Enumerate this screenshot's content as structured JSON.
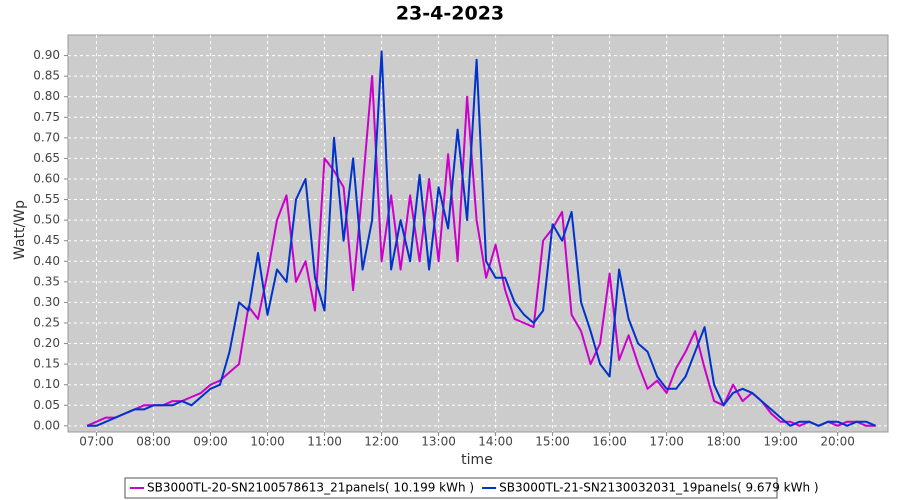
{
  "chart_data": {
    "type": "line",
    "title": "23-4-2023",
    "xlabel": "time",
    "ylabel": "Watt/Wp",
    "x": [
      "06:50",
      "07:00",
      "07:10",
      "07:20",
      "07:30",
      "07:40",
      "07:50",
      "08:00",
      "08:10",
      "08:20",
      "08:30",
      "08:40",
      "08:50",
      "09:00",
      "09:10",
      "09:20",
      "09:30",
      "09:40",
      "09:50",
      "10:00",
      "10:10",
      "10:20",
      "10:30",
      "10:40",
      "10:50",
      "11:00",
      "11:10",
      "11:20",
      "11:30",
      "11:40",
      "11:50",
      "12:00",
      "12:10",
      "12:20",
      "12:30",
      "12:40",
      "12:50",
      "13:00",
      "13:10",
      "13:20",
      "13:30",
      "13:40",
      "13:50",
      "14:00",
      "14:10",
      "14:20",
      "14:30",
      "14:40",
      "14:50",
      "15:00",
      "15:10",
      "15:20",
      "15:30",
      "15:40",
      "15:50",
      "16:00",
      "16:10",
      "16:20",
      "16:30",
      "16:40",
      "16:50",
      "17:00",
      "17:10",
      "17:20",
      "17:30",
      "17:40",
      "17:50",
      "18:00",
      "18:10",
      "18:20",
      "18:30",
      "18:40",
      "18:50",
      "19:00",
      "19:10",
      "19:20",
      "19:30",
      "19:40",
      "19:50",
      "20:00",
      "20:10",
      "20:20",
      "20:30",
      "20:40"
    ],
    "series": [
      {
        "name": "SB3000TL-20-SN2100578613_21panels( 10.199 kWh )",
        "color": "#cc00cc",
        "values": [
          0.0,
          0.01,
          0.02,
          0.02,
          0.03,
          0.04,
          0.05,
          0.05,
          0.05,
          0.06,
          0.06,
          0.07,
          0.08,
          0.1,
          0.11,
          0.13,
          0.15,
          0.29,
          0.26,
          0.37,
          0.5,
          0.56,
          0.35,
          0.4,
          0.28,
          0.65,
          0.62,
          0.58,
          0.33,
          0.58,
          0.85,
          0.4,
          0.56,
          0.38,
          0.56,
          0.4,
          0.6,
          0.4,
          0.66,
          0.4,
          0.8,
          0.5,
          0.36,
          0.44,
          0.33,
          0.26,
          0.25,
          0.24,
          0.45,
          0.48,
          0.52,
          0.27,
          0.23,
          0.15,
          0.2,
          0.37,
          0.16,
          0.22,
          0.15,
          0.09,
          0.11,
          0.08,
          0.14,
          0.18,
          0.23,
          0.14,
          0.06,
          0.05,
          0.1,
          0.06,
          0.08,
          0.06,
          0.03,
          0.01,
          0.01,
          0.0,
          0.01,
          0.0,
          0.01,
          0.0,
          0.01,
          0.01,
          0.0,
          0.0
        ]
      },
      {
        "name": "SB3000TL-21-SN2130032031_19panels( 9.679 kWh )",
        "color": "#0033cc",
        "values": [
          0.0,
          0.0,
          0.01,
          0.02,
          0.03,
          0.04,
          0.04,
          0.05,
          0.05,
          0.05,
          0.06,
          0.05,
          0.07,
          0.09,
          0.1,
          0.18,
          0.3,
          0.28,
          0.42,
          0.27,
          0.38,
          0.35,
          0.55,
          0.6,
          0.36,
          0.28,
          0.7,
          0.45,
          0.65,
          0.38,
          0.5,
          0.91,
          0.38,
          0.5,
          0.4,
          0.61,
          0.38,
          0.58,
          0.48,
          0.72,
          0.5,
          0.89,
          0.4,
          0.36,
          0.36,
          0.3,
          0.27,
          0.25,
          0.28,
          0.49,
          0.45,
          0.52,
          0.3,
          0.23,
          0.15,
          0.12,
          0.38,
          0.26,
          0.2,
          0.18,
          0.12,
          0.09,
          0.09,
          0.12,
          0.18,
          0.24,
          0.1,
          0.05,
          0.08,
          0.09,
          0.08,
          0.06,
          0.04,
          0.02,
          0.0,
          0.01,
          0.01,
          0.0,
          0.01,
          0.01,
          0.0,
          0.01,
          0.01,
          0.0
        ]
      }
    ],
    "xlim": [
      "06:30",
      "20:53"
    ],
    "xticks": [
      "07:00",
      "08:00",
      "09:00",
      "10:00",
      "11:00",
      "12:00",
      "13:00",
      "14:00",
      "15:00",
      "16:00",
      "17:00",
      "18:00",
      "19:00",
      "20:00"
    ],
    "ylim": [
      -0.015,
      0.95
    ],
    "yticks": [
      {
        "value": 0,
        "label": "0.00"
      },
      0.05,
      {
        "value": 0.1,
        "label": "0.10"
      },
      0.15,
      {
        "value": 0.2,
        "label": "0.20"
      },
      0.25,
      {
        "value": 0.3,
        "label": "0.30"
      },
      0.35,
      {
        "value": 0.4,
        "label": "0.40"
      },
      0.45,
      {
        "value": 0.5,
        "label": "0.50"
      },
      0.55,
      {
        "value": 0.6,
        "label": "0.60"
      },
      0.65,
      {
        "value": 0.7,
        "label": "0.70"
      },
      0.75,
      {
        "value": 0.8,
        "label": "0.80"
      },
      0.85,
      {
        "value": 0.9,
        "label": "0.90"
      }
    ],
    "grid": true
  }
}
